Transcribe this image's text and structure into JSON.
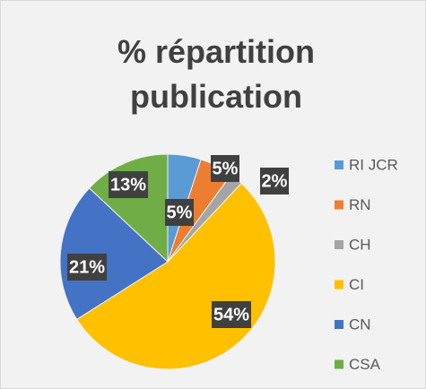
{
  "chart_data": {
    "type": "pie",
    "title": "% répartition publication",
    "categories": [
      "RI JCR",
      "RN",
      "CH",
      "CI",
      "CN",
      "CSA"
    ],
    "values": [
      5,
      5,
      2,
      54,
      21,
      13
    ],
    "value_labels": [
      "5%",
      "5%",
      "2%",
      "54%",
      "21%",
      "13%"
    ],
    "colors": [
      "#5b9bd5",
      "#ed7d31",
      "#a5a5a5",
      "#ffc000",
      "#4472c4",
      "#70ad47"
    ],
    "legend": "right"
  }
}
